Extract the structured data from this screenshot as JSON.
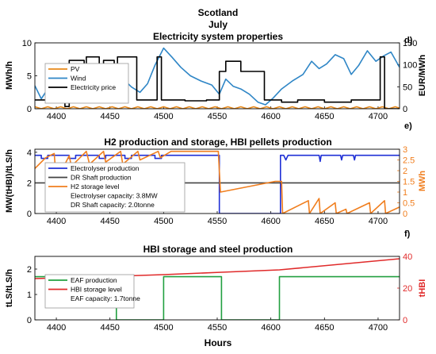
{
  "header": {
    "region": "Scotland",
    "month": "July"
  },
  "xlabel": "Hours",
  "chart_data": [
    {
      "type": "line",
      "panel_letter": "d)",
      "title": "Electricity system properties",
      "ylabel": "MWh/h",
      "ylabel_right": "EUR/MWh",
      "xlim": [
        4380,
        4720
      ],
      "ylim": [
        0,
        10
      ],
      "ylim_right": [
        0,
        150
      ],
      "xticks": [
        4400,
        4450,
        4500,
        4550,
        4600,
        4650,
        4700
      ],
      "yticks": [
        0,
        5,
        10
      ],
      "yticks_right": [
        0,
        50,
        100,
        150
      ],
      "legend": "top-left",
      "colors": {
        "pv": "#e8891a",
        "wind": "#2f86c6",
        "price": "#000000"
      },
      "series": [
        {
          "name": "PV",
          "axis": "left",
          "x": [
            4380,
            4386,
            4392,
            4398,
            4404,
            4410,
            4416,
            4422,
            4428,
            4434,
            4440,
            4446,
            4452,
            4458,
            4464,
            4470,
            4476,
            4482,
            4488,
            4494,
            4500,
            4506,
            4512,
            4518,
            4524,
            4530,
            4536,
            4542,
            4548,
            4554,
            4560,
            4566,
            4572,
            4578,
            4584,
            4590,
            4596,
            4602,
            4608,
            4614,
            4620,
            4626,
            4632,
            4638,
            4644,
            4650,
            4656,
            4662,
            4668,
            4674,
            4680,
            4686,
            4692,
            4698,
            4704,
            4710,
            4716,
            4720
          ],
          "values": [
            0.3,
            0,
            0.3,
            0,
            0.3,
            0,
            0.3,
            0,
            0.3,
            0,
            0.3,
            0,
            0.3,
            0,
            0.3,
            0,
            0.3,
            0,
            0.3,
            0,
            0.3,
            0,
            0.3,
            0,
            0.3,
            0,
            0.3,
            0,
            0.3,
            0,
            0.3,
            0,
            0.3,
            0,
            0.3,
            0,
            0.3,
            0,
            0.3,
            0,
            0.3,
            0,
            0.3,
            0,
            0.3,
            0,
            0.3,
            0,
            0.3,
            0,
            0.3,
            0,
            0.3,
            0,
            0.3,
            0,
            0.3,
            0.1
          ]
        },
        {
          "name": "Wind",
          "axis": "left",
          "x": [
            4380,
            4386,
            4392,
            4400,
            4410,
            4418,
            4425,
            4432,
            4440,
            4448,
            4455,
            4462,
            4470,
            4478,
            4485,
            4492,
            4500,
            4508,
            4516,
            4525,
            4535,
            4545,
            4552,
            4558,
            4565,
            4572,
            4580,
            4588,
            4595,
            4602,
            4610,
            4620,
            4630,
            4638,
            4645,
            4652,
            4660,
            4668,
            4675,
            4682,
            4690,
            4698,
            4705,
            4712,
            4720
          ],
          "values": [
            3.5,
            1.5,
            3.0,
            3.2,
            1.2,
            2.0,
            4.2,
            5.0,
            5.6,
            4.2,
            5.2,
            4.6,
            3.3,
            2.5,
            3.8,
            6.6,
            9.2,
            7.8,
            6.3,
            5.0,
            4.2,
            3.6,
            2.2,
            4.5,
            3.4,
            3.0,
            2.2,
            1.0,
            0.6,
            1.6,
            3.0,
            4.2,
            5.2,
            7.2,
            6.1,
            6.8,
            8.2,
            7.6,
            5.2,
            6.6,
            8.8,
            7.2,
            8.0,
            8.6,
            6.3
          ]
        },
        {
          "name": "Electricity price",
          "axis": "right",
          "x": [
            4380,
            4408,
            4408,
            4412,
            4412,
            4426,
            4426,
            4428,
            4428,
            4440,
            4440,
            4444,
            4444,
            4454,
            4454,
            4457,
            4457,
            4475,
            4475,
            4494,
            4494,
            4498,
            4498,
            4520,
            4520,
            4540,
            4540,
            4552,
            4552,
            4558,
            4558,
            4572,
            4572,
            4594,
            4594,
            4610,
            4610,
            4625,
            4625,
            4650,
            4650,
            4675,
            4675,
            4702,
            4702,
            4706,
            4706,
            4720
          ],
          "values": [
            20,
            20,
            5,
            5,
            110,
            110,
            20,
            20,
            118,
            118,
            20,
            20,
            110,
            110,
            20,
            20,
            118,
            118,
            20,
            20,
            118,
            118,
            20,
            20,
            18,
            18,
            20,
            20,
            85,
            85,
            108,
            108,
            85,
            85,
            20,
            20,
            15,
            15,
            20,
            20,
            15,
            15,
            20,
            20,
            118,
            118,
            0,
            0
          ]
        }
      ]
    },
    {
      "type": "line",
      "panel_letter": "e)",
      "title": "H2 production and storage, HBI pellets production",
      "ylabel": "MW(tHBI)/tLS/h",
      "ylabel_right": "MWh",
      "xlim": [
        4380,
        4720
      ],
      "ylim": [
        0,
        4.2
      ],
      "ylim_right": [
        0,
        3
      ],
      "xticks": [
        4400,
        4450,
        4500,
        4550,
        4600,
        4650,
        4700
      ],
      "yticks": [
        0,
        2,
        4
      ],
      "yticks_right": [
        0,
        0.5,
        1,
        1.5,
        2,
        2.5,
        3
      ],
      "legend": "top-left",
      "colors": {
        "electrolyser": "#1f2fd6",
        "dr_shaft": "#444444",
        "h2_storage": "#f07e1e"
      },
      "annotations": [
        "Electrolyser capacity:   3.8MW",
        "DR Shaft capacity:   2.0tonne"
      ],
      "series": [
        {
          "name": "Electrolyser production",
          "axis": "left",
          "x": [
            4380,
            4386,
            4386,
            4392,
            4392,
            4412,
            4412,
            4418,
            4418,
            4440,
            4440,
            4446,
            4446,
            4464,
            4464,
            4470,
            4470,
            4492,
            4492,
            4498,
            4498,
            4552,
            4552,
            4609,
            4609,
            4612,
            4614,
            4616,
            4618,
            4645,
            4646,
            4647,
            4648,
            4665,
            4666,
            4667,
            4668,
            4677,
            4678,
            4679,
            4680,
            4720
          ],
          "values": [
            3.8,
            3.8,
            3.6,
            3.6,
            3.8,
            3.8,
            3.6,
            3.6,
            3.8,
            3.8,
            3.6,
            3.6,
            3.8,
            3.8,
            3.6,
            3.6,
            3.8,
            3.8,
            3.6,
            3.6,
            3.8,
            3.8,
            0,
            0,
            3.8,
            3.8,
            3.5,
            3.8,
            3.8,
            3.8,
            3.4,
            3.8,
            3.8,
            3.8,
            3.5,
            3.8,
            3.8,
            3.8,
            3.5,
            3.8,
            3.8,
            3.8
          ]
        },
        {
          "name": "DR Shaft production",
          "axis": "left",
          "x": [
            4380,
            4720
          ],
          "values": [
            2.0,
            2.0
          ]
        },
        {
          "name": "H2 storage level",
          "axis": "right",
          "x": [
            4380,
            4390,
            4398,
            4400,
            4412,
            4414,
            4428,
            4431,
            4444,
            4446,
            4460,
            4462,
            4476,
            4478,
            4495,
            4497,
            4507,
            4551,
            4553,
            4604,
            4610,
            4611,
            4635,
            4636,
            4645,
            4646,
            4660,
            4661,
            4670,
            4671,
            4692,
            4693,
            4706,
            4707,
            4720
          ],
          "values": [
            2.1,
            2.6,
            2.8,
            1.5,
            2.7,
            2.2,
            2.9,
            2.3,
            2.9,
            2.4,
            2.9,
            2.3,
            2.9,
            2.5,
            2.9,
            2.6,
            2.9,
            2.9,
            1.0,
            1.5,
            1.5,
            0,
            0.6,
            0,
            0.7,
            0,
            0.5,
            0,
            0.2,
            0,
            0.5,
            0,
            0.6,
            0,
            0.3
          ]
        }
      ]
    },
    {
      "type": "line",
      "panel_letter": "f)",
      "title": "HBI storage and steel production",
      "ylabel": "tLS/tLS/h",
      "ylabel_right": "tHBI",
      "xlim": [
        4380,
        4720
      ],
      "ylim": [
        0,
        2.5
      ],
      "ylim_right": [
        0,
        40
      ],
      "xticks": [
        4400,
        4450,
        4500,
        4550,
        4600,
        4650,
        4700
      ],
      "yticks": [
        0,
        1,
        2
      ],
      "yticks_right": [
        0,
        20,
        40
      ],
      "legend": "top-left",
      "colors": {
        "eaf": "#22a040",
        "hbi": "#e02a2a"
      },
      "annotations": [
        "EAF capacity:   1.7tonne"
      ],
      "series": [
        {
          "name": "EAF production",
          "axis": "left",
          "x": [
            4380,
            4456,
            4456,
            4500,
            4500,
            4554,
            4554,
            4608,
            4608,
            4720
          ],
          "values": [
            1.7,
            1.7,
            0,
            0,
            1.7,
            1.7,
            0,
            0,
            1.7,
            1.7
          ]
        },
        {
          "name": "HBI storage level",
          "axis": "right",
          "x": [
            4380,
            4456,
            4500,
            4554,
            4608,
            4720
          ],
          "values": [
            26,
            27.5,
            28.5,
            30,
            31.5,
            38.5
          ]
        }
      ]
    }
  ]
}
